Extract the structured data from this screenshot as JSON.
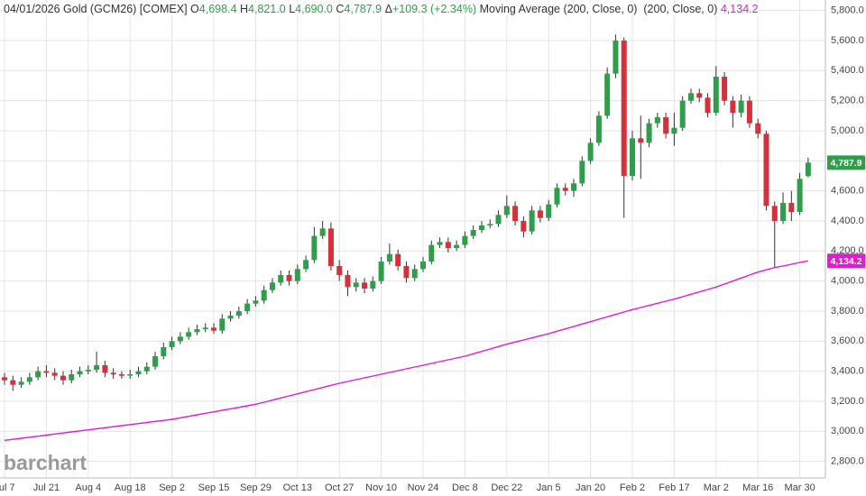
{
  "chart_data": {
    "type": "candlestick",
    "quote": {
      "title": "04/01/2026 Gold (GCM26) [COMEX]",
      "color": "#2e9e4a",
      "fields": [
        {
          "name": "O",
          "value": "4,698.4"
        },
        {
          "name": "H",
          "value": "4,821.0"
        },
        {
          "name": "L",
          "value": "4,690.0"
        },
        {
          "name": "C",
          "value": "4,787.9"
        },
        {
          "name": "Δ",
          "value": "+109.3 (+2.34%)"
        }
      ]
    },
    "categories": [
      "Jul 7",
      null,
      null,
      null,
      null,
      "Jul 21",
      null,
      null,
      null,
      null,
      "Aug 4",
      null,
      null,
      null,
      null,
      "Aug 18",
      null,
      null,
      null,
      null,
      "Sep 2",
      null,
      null,
      null,
      null,
      "Sep 15",
      null,
      null,
      null,
      null,
      "Sep 29",
      null,
      null,
      null,
      null,
      "Oct 13",
      null,
      null,
      null,
      null,
      "Oct 27",
      null,
      null,
      null,
      null,
      "Nov 10",
      null,
      null,
      null,
      null,
      "Nov 24",
      null,
      null,
      null,
      null,
      "Dec 8",
      null,
      null,
      null,
      null,
      "Dec 22",
      null,
      null,
      null,
      null,
      "Jan 5",
      null,
      null,
      null,
      null,
      "Jan 20",
      null,
      null,
      null,
      null,
      "Feb 2",
      null,
      null,
      null,
      null,
      "Feb 17",
      null,
      null,
      null,
      null,
      "Mar 2",
      null,
      null,
      null,
      null,
      "Mar 16",
      null,
      null,
      null,
      null,
      "Mar 30",
      null
    ],
    "open": [
      3360,
      3340,
      3310,
      3330,
      3360,
      3400,
      3390,
      3370,
      3340,
      3380,
      3400,
      3410,
      3440,
      3390,
      3380,
      3370,
      3380,
      3400,
      3430,
      3500,
      3560,
      3600,
      3630,
      3660,
      3680,
      3690,
      3670,
      3750,
      3770,
      3800,
      3850,
      3870,
      3940,
      3990,
      4040,
      4000,
      4080,
      4140,
      4300,
      4350,
      4100,
      4040,
      3960,
      3990,
      3950,
      4000,
      4130,
      4180,
      4100,
      4020,
      4080,
      4130,
      4240,
      4260,
      4220,
      4240,
      4300,
      4340,
      4370,
      4380,
      4440,
      4500,
      4400,
      4330,
      4470,
      4420,
      4510,
      4620,
      4600,
      4650,
      4800,
      4920,
      5100,
      5380,
      5600,
      4700,
      4950,
      4920,
      5050,
      5090,
      4980,
      5020,
      5200,
      5250,
      5220,
      5120,
      5360,
      5200,
      5120,
      5200,
      5050,
      4980,
      4500,
      4400,
      4520,
      4460,
      4698.4
    ],
    "high": [
      3390,
      3370,
      3360,
      3390,
      3430,
      3440,
      3420,
      3400,
      3410,
      3430,
      3440,
      3530,
      3470,
      3420,
      3400,
      3410,
      3430,
      3460,
      3530,
      3590,
      3630,
      3660,
      3690,
      3710,
      3720,
      3720,
      3780,
      3800,
      3830,
      3880,
      3900,
      3970,
      4020,
      4070,
      4070,
      4110,
      4170,
      4360,
      4400,
      4390,
      4140,
      4070,
      4020,
      4020,
      4030,
      4160,
      4250,
      4210,
      4130,
      4110,
      4160,
      4270,
      4290,
      4290,
      4270,
      4330,
      4370,
      4400,
      4410,
      4470,
      4570,
      4530,
      4430,
      4500,
      4500,
      4540,
      4650,
      4650,
      4680,
      4830,
      4950,
      5130,
      5420,
      5640,
      5620,
      5000,
      5100,
      5080,
      5120,
      5120,
      5120,
      5230,
      5280,
      5280,
      5250,
      5430,
      5390,
      5230,
      5240,
      5230,
      5080,
      5000,
      4530,
      4590,
      4600,
      4720,
      4821.0
    ],
    "low": [
      3310,
      3270,
      3290,
      3310,
      3340,
      3360,
      3340,
      3310,
      3320,
      3360,
      3380,
      3390,
      3360,
      3350,
      3350,
      3350,
      3360,
      3380,
      3410,
      3480,
      3540,
      3580,
      3610,
      3640,
      3660,
      3650,
      3650,
      3730,
      3750,
      3780,
      3830,
      3850,
      3920,
      3970,
      3970,
      3980,
      4060,
      4120,
      4280,
      4070,
      4000,
      3900,
      3930,
      3920,
      3930,
      3980,
      4110,
      4070,
      3990,
      4000,
      4060,
      4110,
      4220,
      4190,
      4200,
      4220,
      4280,
      4320,
      4350,
      4360,
      4420,
      4370,
      4290,
      4310,
      4390,
      4400,
      4490,
      4570,
      4560,
      4630,
      4780,
      4900,
      5080,
      5350,
      4420,
      4670,
      4680,
      4890,
      5020,
      4950,
      4900,
      5000,
      5180,
      5190,
      5090,
      5100,
      5170,
      5020,
      5090,
      5020,
      4950,
      4470,
      4090,
      4380,
      4400,
      4440,
      4690.0
    ],
    "close": [
      3340,
      3310,
      3330,
      3360,
      3400,
      3390,
      3370,
      3340,
      3380,
      3400,
      3410,
      3440,
      3390,
      3380,
      3370,
      3380,
      3400,
      3430,
      3500,
      3560,
      3600,
      3630,
      3660,
      3680,
      3690,
      3670,
      3750,
      3770,
      3800,
      3850,
      3870,
      3940,
      3990,
      4040,
      4000,
      4080,
      4140,
      4300,
      4350,
      4100,
      4040,
      3960,
      3990,
      3950,
      4000,
      4130,
      4180,
      4100,
      4020,
      4080,
      4130,
      4240,
      4260,
      4220,
      4240,
      4300,
      4340,
      4370,
      4380,
      4440,
      4500,
      4400,
      4330,
      4470,
      4420,
      4510,
      4620,
      4600,
      4650,
      4800,
      4920,
      5100,
      5380,
      5600,
      4700,
      4950,
      4920,
      5050,
      5090,
      4980,
      5020,
      5200,
      5250,
      5220,
      5120,
      5360,
      5200,
      5120,
      5200,
      5050,
      4980,
      4500,
      4400,
      4520,
      4460,
      4680,
      4787.9
    ],
    "up_color": "#2e9e4a",
    "down_color": "#d6303a",
    "moving_average": {
      "name": "Moving Average (200, Close, 0)  (200, Close, 0)",
      "color": "#e01ccf",
      "last_label": "4,134.2",
      "values": [
        2940,
        2947,
        2954,
        2961,
        2968,
        2975,
        2982,
        2989,
        2996,
        3003,
        3010,
        3017,
        3024,
        3031,
        3038,
        3045,
        3052,
        3059,
        3066,
        3073,
        3080,
        3090,
        3100,
        3110,
        3120,
        3130,
        3140,
        3150,
        3160,
        3170,
        3180,
        3194,
        3208,
        3222,
        3236,
        3250,
        3264,
        3278,
        3292,
        3306,
        3320,
        3332,
        3344,
        3356,
        3368,
        3380,
        3392,
        3404,
        3416,
        3428,
        3440,
        3452,
        3464,
        3476,
        3488,
        3500,
        3516,
        3532,
        3548,
        3564,
        3580,
        3594,
        3608,
        3622,
        3636,
        3650,
        3666,
        3682,
        3698,
        3714,
        3730,
        3746,
        3762,
        3778,
        3794,
        3810,
        3824,
        3838,
        3852,
        3866,
        3880,
        3896,
        3912,
        3928,
        3944,
        3960,
        3980,
        4000,
        4020,
        4040,
        4060,
        4075,
        4090,
        4100,
        4112,
        4124,
        4134.2
      ]
    },
    "ylim": [
      2690,
      5870
    ],
    "yticks": [
      {
        "value": 2800,
        "label": "2,800.0"
      },
      {
        "value": 3000,
        "label": "3,000.0"
      },
      {
        "value": 3200,
        "label": "3,200.0"
      },
      {
        "value": 3400,
        "label": "3,400.0"
      },
      {
        "value": 3600,
        "label": "3,600.0"
      },
      {
        "value": 3800,
        "label": "3,800.0"
      },
      {
        "value": 4000,
        "label": "4,000.0"
      },
      {
        "value": 4200,
        "label": "4,200.0"
      },
      {
        "value": 4400,
        "label": "4,400.0"
      },
      {
        "value": 4600,
        "label": "4,600.0"
      },
      {
        "value": 4800,
        "label": "4,800.0"
      },
      {
        "value": 5000,
        "label": "5,000.0"
      },
      {
        "value": 5200,
        "label": "5,200.0"
      },
      {
        "value": 5400,
        "label": "5,400.0"
      },
      {
        "value": 5600,
        "label": "5,600.0"
      },
      {
        "value": 5800,
        "label": "5,800.0"
      }
    ],
    "grid": true,
    "watermark": "barchart"
  }
}
